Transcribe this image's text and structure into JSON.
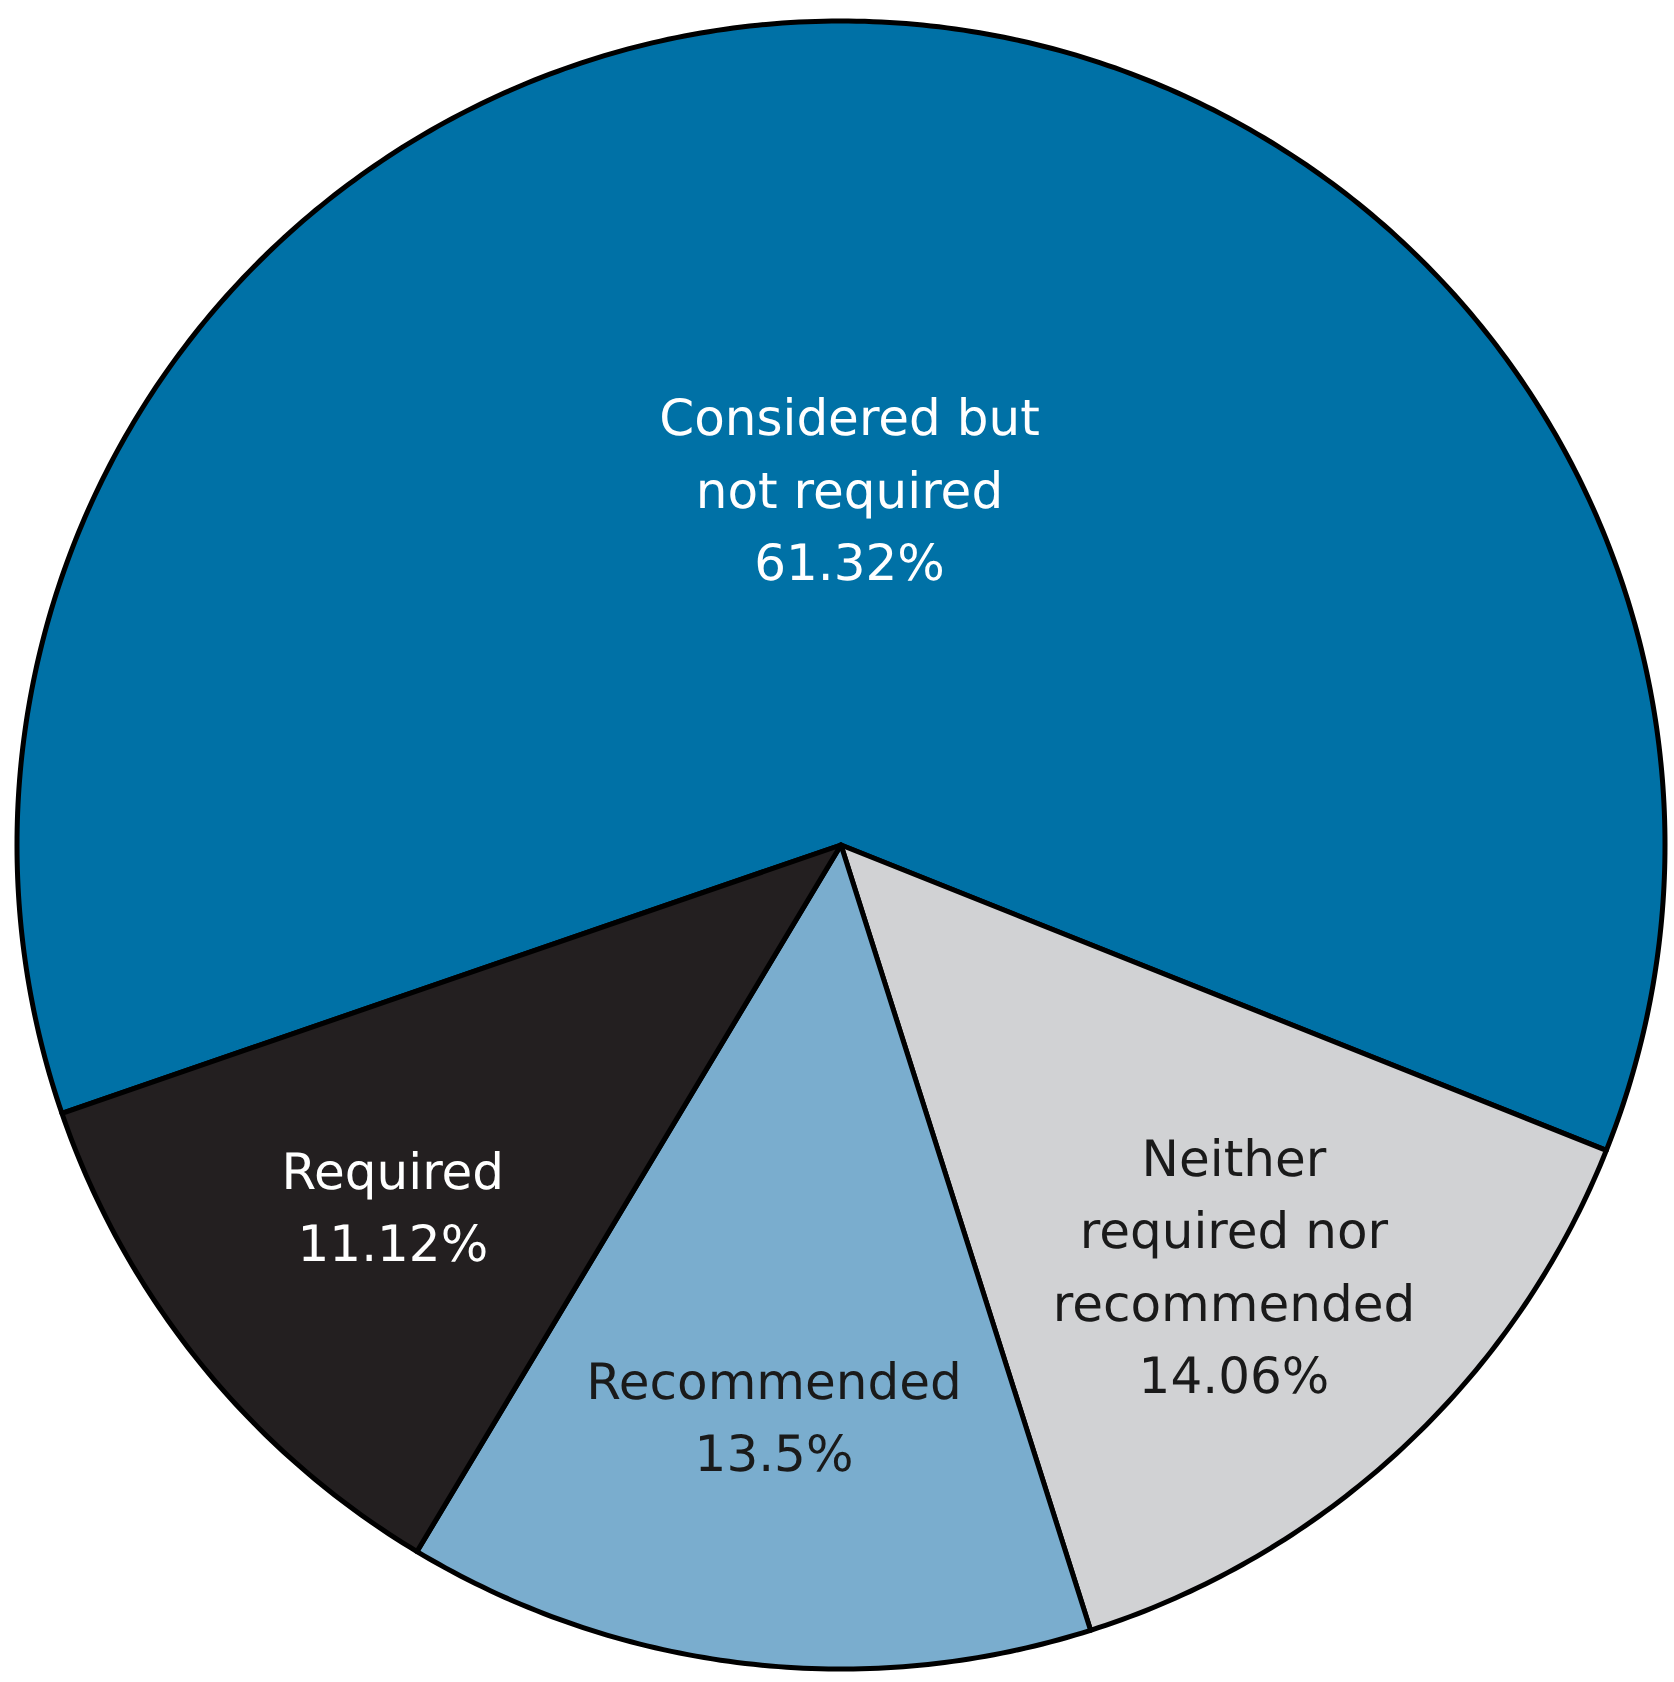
{
  "chart_data": {
    "type": "pie",
    "categories": [
      "Considered but not required",
      "Neither required nor recommended",
      "Recommended",
      "Required"
    ],
    "values": [
      61.32,
      14.06,
      13.5,
      11.12
    ],
    "value_labels": [
      "61.32%",
      "14.06%",
      "13.5%",
      "11.12%"
    ],
    "colors": [
      "#0071a6",
      "#d1d2d4",
      "#7aadce",
      "#231f20"
    ],
    "legend": false
  }
}
